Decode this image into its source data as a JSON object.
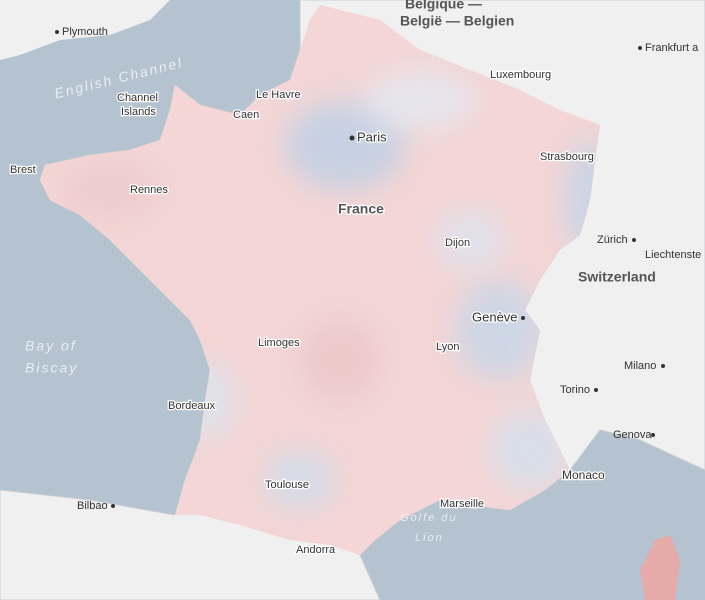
{
  "places": [
    "Belgique —",
    "België — Belgien",
    "Plymouth",
    "Frankfurt a",
    "English Channel",
    "Luxembourg",
    "Le Havre",
    "Channel",
    "Islands",
    "Caen",
    "Paris",
    "Brest",
    "Rennes",
    "Strasbourg",
    "France",
    "Dijon",
    "Zürich",
    "Liechtenste",
    "Switzerland",
    "Genève",
    "Bay of",
    "Biscay",
    "Limoges",
    "Lyon",
    "Milano",
    "Torino",
    "Bordeaux",
    "Genova",
    "Monaco",
    "Toulouse",
    "Marseille",
    "Bilbao",
    "Golfe du",
    "Lion",
    "Andorra"
  ]
}
